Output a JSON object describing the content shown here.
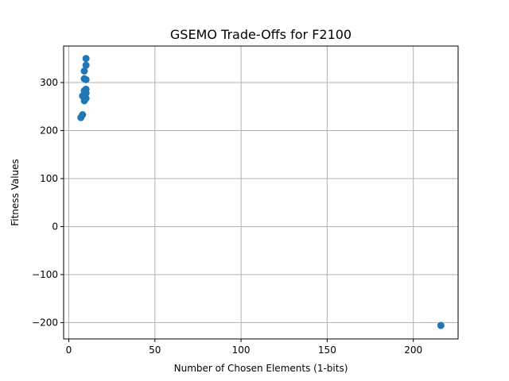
{
  "chart_data": {
    "type": "scatter",
    "title": "GSEMO Trade-Offs for F2100",
    "xlabel": "Number of Chosen Elements (1-bits)",
    "ylabel": "Fitness Values",
    "xlim": [
      -3,
      226
    ],
    "ylim": [
      -234,
      376
    ],
    "x_ticks": [
      0,
      50,
      100,
      150,
      200
    ],
    "y_ticks": [
      -200,
      -100,
      0,
      100,
      200,
      300
    ],
    "grid": true,
    "marker_color": "#1f77b4",
    "points": [
      {
        "x": 7,
        "y": 227
      },
      {
        "x": 8,
        "y": 233
      },
      {
        "x": 8,
        "y": 272
      },
      {
        "x": 9,
        "y": 262
      },
      {
        "x": 9,
        "y": 283
      },
      {
        "x": 9,
        "y": 308
      },
      {
        "x": 9,
        "y": 324
      },
      {
        "x": 10,
        "y": 267
      },
      {
        "x": 10,
        "y": 278
      },
      {
        "x": 10,
        "y": 286
      },
      {
        "x": 10,
        "y": 306
      },
      {
        "x": 10,
        "y": 336
      },
      {
        "x": 10,
        "y": 350
      },
      {
        "x": 216,
        "y": -206
      }
    ]
  }
}
